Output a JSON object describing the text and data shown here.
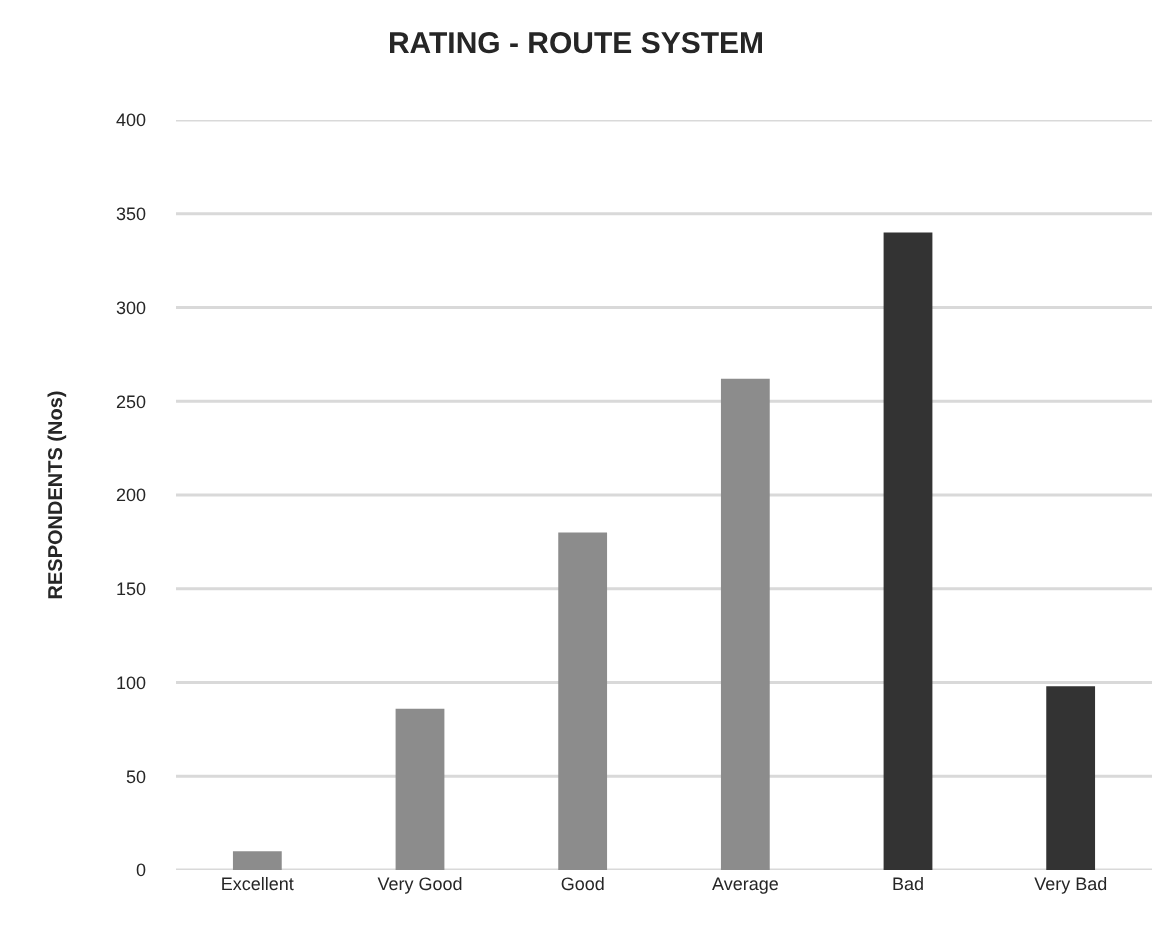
{
  "chart_data": {
    "type": "bar",
    "title": "RATING - ROUTE SYSTEM",
    "ylabel": "RESPONDENTS (Nos)",
    "categories": [
      "Excellent",
      "Very Good",
      "Good",
      "Average",
      "Bad",
      "Very Bad"
    ],
    "values": [
      10,
      86,
      180,
      262,
      340,
      98
    ],
    "colors": [
      "#8c8c8c",
      "#8c8c8c",
      "#8c8c8c",
      "#8c8c8c",
      "#333333",
      "#333333"
    ],
    "ylim": [
      0,
      400
    ],
    "yticks": [
      0,
      50,
      100,
      150,
      200,
      250,
      300,
      350,
      400
    ],
    "grid": "y"
  }
}
